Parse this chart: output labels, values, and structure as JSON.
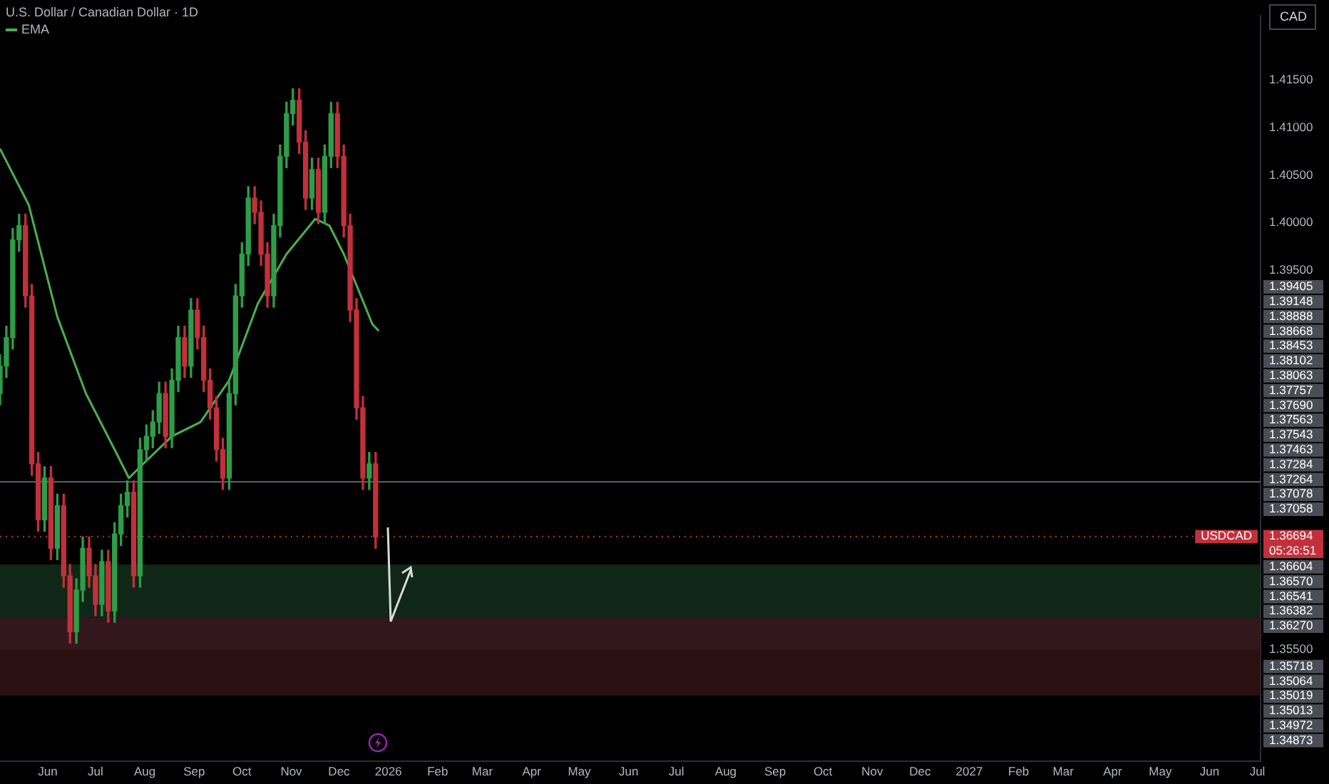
{
  "chart_data": {
    "type": "candlestick",
    "title": "U.S. Dollar / Canadian Dollar · 1D",
    "ylabel": "CAD",
    "legend": "top left",
    "x": [
      "2025-05-02",
      "2025-05-06",
      "2025-05-10",
      "2025-05-14",
      "2025-05-18",
      "2025-05-22",
      "2025-05-26",
      "2025-05-30",
      "2025-06-03",
      "2025-06-07",
      "2025-06-11",
      "2025-06-15",
      "2025-06-19",
      "2025-06-23",
      "2025-06-27",
      "2025-07-01",
      "2025-07-05",
      "2025-07-09",
      "2025-07-13",
      "2025-07-17",
      "2025-07-21",
      "2025-07-25",
      "2025-07-29",
      "2025-08-02",
      "2025-08-06",
      "2025-08-10",
      "2025-08-14",
      "2025-08-18",
      "2025-08-22",
      "2025-08-26",
      "2025-08-30",
      "2025-09-03",
      "2025-09-07",
      "2025-09-11",
      "2025-09-15",
      "2025-09-19",
      "2025-09-23",
      "2025-09-27",
      "2025-10-01",
      "2025-10-05",
      "2025-10-09",
      "2025-10-13",
      "2025-10-17",
      "2025-10-21",
      "2025-10-25",
      "2025-10-29",
      "2025-11-02",
      "2025-11-06",
      "2025-11-10",
      "2025-11-14",
      "2025-11-18",
      "2025-11-22",
      "2025-11-26",
      "2025-11-30",
      "2025-12-04",
      "2025-12-08",
      "2025-12-12",
      "2025-12-16",
      "2025-12-20",
      "2025-12-24"
    ],
    "ohlc": [
      [
        1.382,
        1.3861,
        1.3808,
        1.3849
      ],
      [
        1.3849,
        1.3891,
        1.3837,
        1.3879
      ],
      [
        1.3879,
        1.3994,
        1.3867,
        1.3982
      ],
      [
        1.3982,
        1.4009,
        1.397,
        1.3997
      ],
      [
        1.3997,
        1.4009,
        1.3911,
        1.3923
      ],
      [
        1.3923,
        1.3935,
        1.3734,
        1.3746
      ],
      [
        1.3746,
        1.3758,
        1.3675,
        1.3687
      ],
      [
        1.3687,
        1.3743,
        1.3675,
        1.3731
      ],
      [
        1.3731,
        1.3743,
        1.3645,
        1.3657
      ],
      [
        1.3657,
        1.3714,
        1.3645,
        1.3702
      ],
      [
        1.3702,
        1.3714,
        1.3616,
        1.3628
      ],
      [
        1.3628,
        1.364,
        1.3557,
        1.3569
      ],
      [
        1.3569,
        1.3625,
        1.3557,
        1.3613
      ],
      [
        1.3613,
        1.3669,
        1.3601,
        1.3657
      ],
      [
        1.3657,
        1.3669,
        1.3616,
        1.3628
      ],
      [
        1.3628,
        1.364,
        1.3586,
        1.3598
      ],
      [
        1.3598,
        1.3655,
        1.3586,
        1.3643
      ],
      [
        1.3643,
        1.3655,
        1.3579,
        1.3591
      ],
      [
        1.3591,
        1.3684,
        1.3579,
        1.3672
      ],
      [
        1.3672,
        1.3714,
        1.366,
        1.3702
      ],
      [
        1.3702,
        1.3728,
        1.369,
        1.3716
      ],
      [
        1.3716,
        1.3728,
        1.3616,
        1.3628
      ],
      [
        1.3628,
        1.3773,
        1.3616,
        1.3761
      ],
      [
        1.3761,
        1.3787,
        1.3749,
        1.3775
      ],
      [
        1.3775,
        1.3802,
        1.3763,
        1.379
      ],
      [
        1.379,
        1.3832,
        1.3778,
        1.382
      ],
      [
        1.382,
        1.3832,
        1.3763,
        1.3775
      ],
      [
        1.3775,
        1.3846,
        1.3763,
        1.3834
      ],
      [
        1.3834,
        1.3891,
        1.3822,
        1.3879
      ],
      [
        1.3879,
        1.3891,
        1.3837,
        1.3849
      ],
      [
        1.3849,
        1.392,
        1.3837,
        1.3908
      ],
      [
        1.3908,
        1.392,
        1.3867,
        1.3879
      ],
      [
        1.3879,
        1.3891,
        1.3822,
        1.3834
      ],
      [
        1.3834,
        1.3846,
        1.3793,
        1.3805
      ],
      [
        1.3805,
        1.3817,
        1.3749,
        1.3761
      ],
      [
        1.3761,
        1.3773,
        1.3719,
        1.3731
      ],
      [
        1.3731,
        1.3832,
        1.3719,
        1.382
      ],
      [
        1.382,
        1.3935,
        1.3808,
        1.3923
      ],
      [
        1.3923,
        1.3979,
        1.3911,
        1.3967
      ],
      [
        1.3967,
        1.4038,
        1.3955,
        1.4026
      ],
      [
        1.4026,
        1.4038,
        1.3999,
        1.4011
      ],
      [
        1.4011,
        1.4023,
        1.3955,
        1.3967
      ],
      [
        1.3967,
        1.3979,
        1.3911,
        1.3923
      ],
      [
        1.3923,
        1.4009,
        1.3911,
        1.3997
      ],
      [
        1.3997,
        1.4082,
        1.3985,
        1.407
      ],
      [
        1.407,
        1.4127,
        1.4058,
        1.4115
      ],
      [
        1.4115,
        1.4141,
        1.4103,
        1.4129
      ],
      [
        1.4129,
        1.4141,
        1.4073,
        1.4085
      ],
      [
        1.4085,
        1.4097,
        1.4014,
        1.4026
      ],
      [
        1.4026,
        1.4068,
        1.4014,
        1.4056
      ],
      [
        1.4056,
        1.4068,
        1.3999,
        1.4011
      ],
      [
        1.4011,
        1.4082,
        1.3999,
        1.407
      ],
      [
        1.407,
        1.4127,
        1.4058,
        1.4115
      ],
      [
        1.4115,
        1.4127,
        1.4058,
        1.407
      ],
      [
        1.407,
        1.4082,
        1.3985,
        1.3997
      ],
      [
        1.3997,
        1.4009,
        1.3896,
        1.3908
      ],
      [
        1.3908,
        1.392,
        1.3793,
        1.3805
      ],
      [
        1.3805,
        1.3817,
        1.3719,
        1.3731
      ],
      [
        1.3731,
        1.3758,
        1.3719,
        1.3746
      ],
      [
        1.3746,
        1.3758,
        1.3657,
        1.3669
      ]
    ],
    "colors": [
      "#2e9d48",
      "#2e9d48",
      "#2e9d48",
      "#2e9d48",
      "#c2303b",
      "#c2303b",
      "#c2303b",
      "#2e9d48",
      "#c2303b",
      "#2e9d48",
      "#c2303b",
      "#c2303b",
      "#2e9d48",
      "#2e9d48",
      "#c2303b",
      "#c2303b",
      "#2e9d48",
      "#c2303b",
      "#2e9d48",
      "#2e9d48",
      "#2e9d48",
      "#c2303b",
      "#2e9d48",
      "#2e9d48",
      "#2e9d48",
      "#2e9d48",
      "#c2303b",
      "#2e9d48",
      "#2e9d48",
      "#c2303b",
      "#2e9d48",
      "#c2303b",
      "#c2303b",
      "#c2303b",
      "#c2303b",
      "#c2303b",
      "#2e9d48",
      "#2e9d48",
      "#2e9d48",
      "#2e9d48",
      "#c2303b",
      "#c2303b",
      "#c2303b",
      "#2e9d48",
      "#2e9d48",
      "#2e9d48",
      "#2e9d48",
      "#c2303b",
      "#c2303b",
      "#2e9d48",
      "#c2303b",
      "#2e9d48",
      "#2e9d48",
      "#c2303b",
      "#c2303b",
      "#c2303b",
      "#c2303b",
      "#c2303b",
      "#2e9d48",
      "#c2303b"
    ],
    "series": [
      {
        "name": "EMA",
        "type": "line",
        "color": "#4caf50",
        "x": [
          "2025-05-02",
          "2025-05-20",
          "2025-06-07",
          "2025-06-25",
          "2025-07-13",
          "2025-07-22",
          "2025-07-31",
          "2025-08-18",
          "2025-09-05",
          "2025-09-23",
          "2025-10-11",
          "2025-10-29",
          "2025-11-16",
          "2025-11-25",
          "2025-12-04",
          "2025-12-13",
          "2025-12-22",
          "2025-12-26"
        ],
        "values": [
          1.4078,
          1.4019,
          1.3901,
          1.382,
          1.3761,
          1.3731,
          1.3746,
          1.3775,
          1.379,
          1.3834,
          1.3915,
          1.3967,
          1.4004,
          1.3997,
          1.3967,
          1.393,
          1.3893,
          1.3886
        ]
      }
    ],
    "xlim": [
      "2025-05-02",
      "2027-07-03"
    ],
    "xticks": [
      {
        "value": "2025-06-01",
        "label": "Jun"
      },
      {
        "value": "2025-07-01",
        "label": "Jul"
      },
      {
        "value": "2025-08-01",
        "label": "Aug"
      },
      {
        "value": "2025-09-01",
        "label": "Sep"
      },
      {
        "value": "2025-10-01",
        "label": "Oct"
      },
      {
        "value": "2025-11-01",
        "label": "Nov"
      },
      {
        "value": "2025-12-01",
        "label": "Dec"
      },
      {
        "value": "2026-01-01",
        "label": "2026"
      },
      {
        "value": "2026-02-01",
        "label": "Feb"
      },
      {
        "value": "2026-03-01",
        "label": "Mar"
      },
      {
        "value": "2026-04-01",
        "label": "Apr"
      },
      {
        "value": "2026-05-01",
        "label": "May"
      },
      {
        "value": "2026-06-01",
        "label": "Jun"
      },
      {
        "value": "2026-07-01",
        "label": "Jul"
      },
      {
        "value": "2026-08-01",
        "label": "Aug"
      },
      {
        "value": "2026-09-01",
        "label": "Sep"
      },
      {
        "value": "2026-10-01",
        "label": "Oct"
      },
      {
        "value": "2026-11-01",
        "label": "Nov"
      },
      {
        "value": "2026-12-01",
        "label": "Dec"
      },
      {
        "value": "2027-01-01",
        "label": "2027"
      },
      {
        "value": "2027-02-01",
        "label": "Feb"
      },
      {
        "value": "2027-03-01",
        "label": "Mar"
      },
      {
        "value": "2027-04-01",
        "label": "Apr"
      },
      {
        "value": "2027-05-01",
        "label": "May"
      },
      {
        "value": "2027-06-01",
        "label": "Jun"
      },
      {
        "value": "2027-07-01",
        "label": "Jul"
      }
    ],
    "ylim": [
      1.3433,
      1.4218
    ],
    "yticks": [
      {
        "value": 1.355,
        "label": "1.35500"
      },
      {
        "value": 1.395,
        "label": "1.39500"
      },
      {
        "value": 1.4,
        "label": "1.40000"
      },
      {
        "value": 1.405,
        "label": "1.40500"
      },
      {
        "value": 1.41,
        "label": "1.41000"
      },
      {
        "value": 1.415,
        "label": "1.41500"
      }
    ],
    "bands": [
      {
        "axis": "y",
        "from": 1.355,
        "to": 1.3584,
        "color": "#2a2e39"
      },
      {
        "axis": "y",
        "from": 1.3584,
        "to": 1.364,
        "color": "#16331d"
      },
      {
        "axis": "y",
        "from": 1.3502,
        "to": 1.3584,
        "color": "#3a1518"
      }
    ],
    "ref_lines": [
      {
        "axis": "y",
        "value": 1.3727,
        "color": "#5d606b",
        "line_style": "solid"
      },
      {
        "axis": "y",
        "value": 1.36694,
        "label": "1.36694",
        "color": "#c2303b",
        "line_style": "dotted"
      }
    ],
    "annotations": [
      "USDCAD",
      "05:26:51",
      "1.39405",
      "1.39148",
      "1.38888",
      "1.38668",
      "1.38453",
      "1.38102",
      "1.38063",
      "1.37757",
      "1.37690",
      "1.37563",
      "1.37543",
      "1.37463",
      "1.37284",
      "1.37264",
      "1.37078",
      "1.37058",
      "1.36604",
      "1.36570",
      "1.36541",
      "1.36382",
      "1.36270",
      "1.35718",
      "1.35064",
      "1.35019",
      "1.35013",
      "1.34972",
      "1.34873"
    ]
  }
}
